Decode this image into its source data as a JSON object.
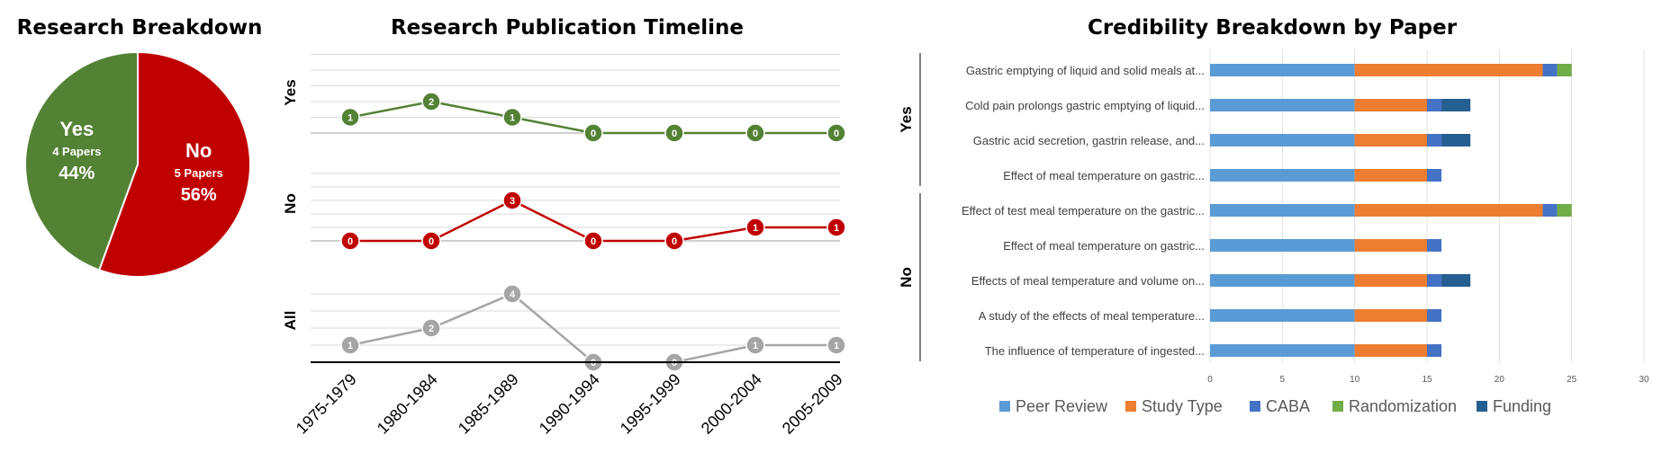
{
  "chart_data": [
    {
      "type": "pie",
      "title": "Research Breakdown",
      "slices": [
        {
          "label": "Yes",
          "sub": "4 Papers",
          "value": 4,
          "percent": "44%",
          "color": "#548235"
        },
        {
          "label": "No",
          "sub": "5 Papers",
          "value": 5,
          "percent": "56%",
          "color": "#c00000"
        }
      ]
    },
    {
      "type": "line",
      "title": "Research Publication Timeline",
      "categories": [
        "1975-1979",
        "1980-1984",
        "1985-1989",
        "1990-1994",
        "1995-1999",
        "2000-2004",
        "2005-2009"
      ],
      "series": [
        {
          "name": "Yes",
          "values": [
            1,
            2,
            1,
            0,
            0,
            0,
            0
          ],
          "color": "#548235"
        },
        {
          "name": "No",
          "values": [
            0,
            0,
            3,
            0,
            0,
            1,
            1
          ],
          "color": "#c00000"
        },
        {
          "name": "All",
          "values": [
            1,
            2,
            4,
            0,
            0,
            1,
            1
          ],
          "color": "#a5a5a5"
        }
      ]
    },
    {
      "type": "bar",
      "orientation": "horizontal",
      "stacked": true,
      "title": "Credibility Breakdown by Paper",
      "groups": [
        {
          "name": "Yes",
          "items": [
            "Gastric emptying of liquid and solid meals at...",
            "Cold pain prolongs gastric emptying of liquid...",
            "Gastric acid secretion, gastrin release, and...",
            "Effect of meal temperature on gastric..."
          ]
        },
        {
          "name": "No",
          "items": [
            "Effect of test meal temperature on the gastric...",
            "Effect of meal temperature on gastric...",
            "Effects of meal temperature and volume on...",
            "A study of the effects of meal temperature...",
            "The influence of temperature of ingested..."
          ]
        }
      ],
      "series": [
        {
          "name": "Peer Review",
          "color": "#5b9bd5",
          "values": [
            10,
            10,
            10,
            10,
            10,
            10,
            10,
            10,
            10
          ]
        },
        {
          "name": "Study Type",
          "color": "#ed7d31",
          "values": [
            13,
            5,
            5,
            5,
            13,
            5,
            5,
            5,
            5
          ]
        },
        {
          "name": "CABA",
          "color": "#4472c4",
          "values": [
            1,
            1,
            1,
            1,
            1,
            1,
            1,
            1,
            1
          ]
        },
        {
          "name": "Randomization",
          "color": "#70ad47",
          "values": [
            1,
            0,
            0,
            0,
            1,
            0,
            0,
            0,
            0
          ]
        },
        {
          "name": "Funding",
          "color": "#255e91",
          "values": [
            0,
            2,
            2,
            0,
            0,
            0,
            2,
            0,
            0
          ]
        }
      ],
      "xlim": [
        0,
        30
      ],
      "xticks": [
        0,
        5,
        10,
        15,
        20,
        25,
        30
      ],
      "legend": "bottom"
    }
  ]
}
